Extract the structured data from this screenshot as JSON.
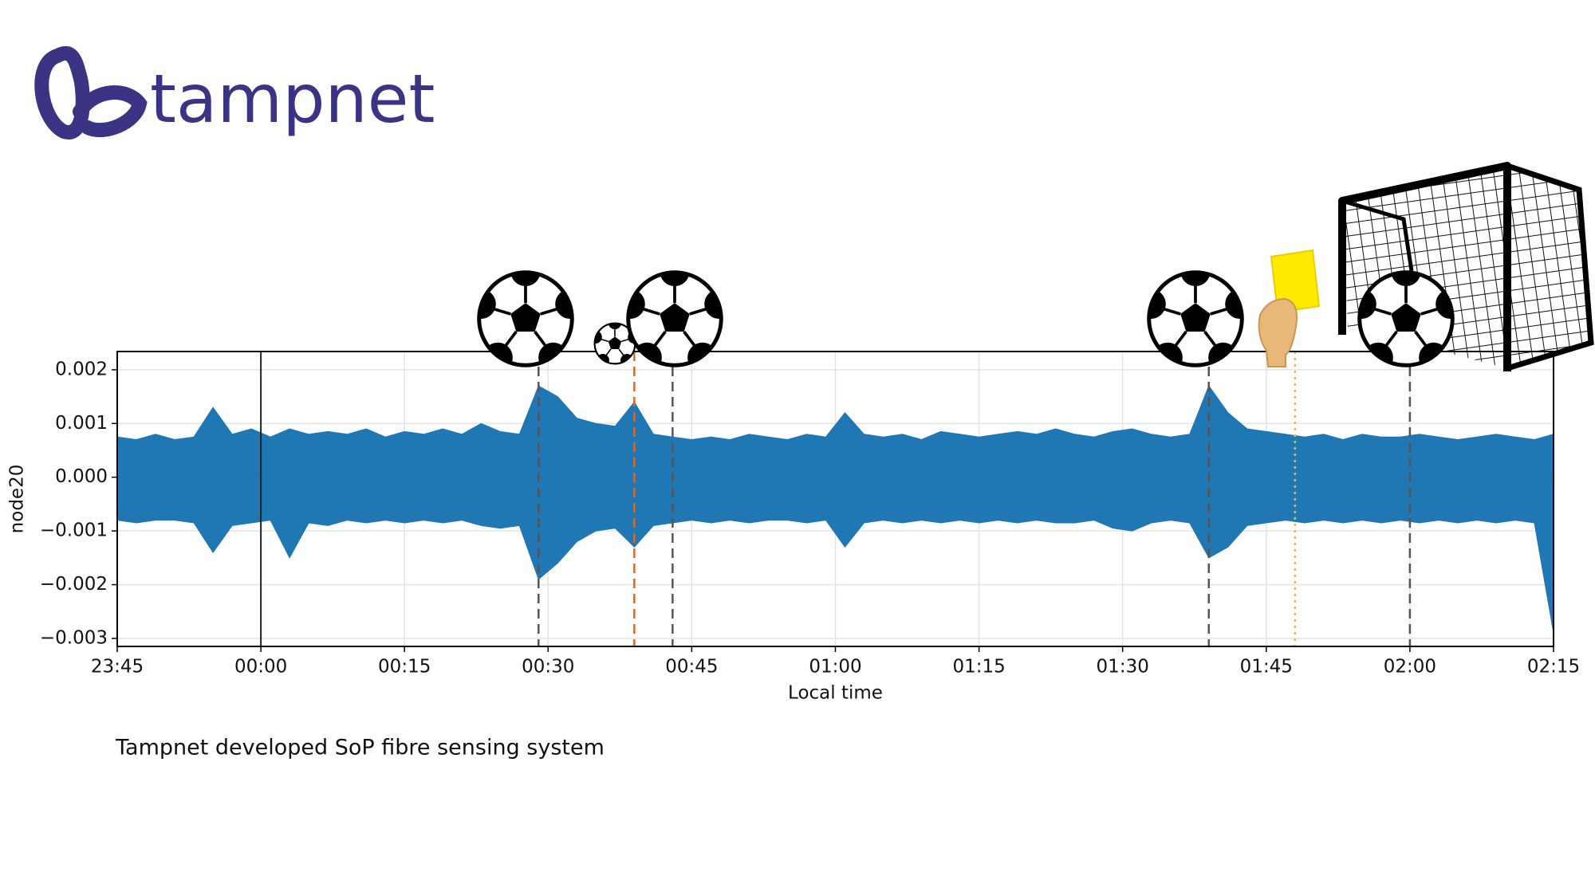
{
  "logo": {
    "text": "tampnet"
  },
  "caption": "Tampnet developed SoP fibre sensing system",
  "chart_data": {
    "type": "band",
    "y_label": "node20",
    "x_label": "Local time",
    "color": "#1f77b4",
    "grid": true,
    "xlim": [
      "23:45",
      "02:15"
    ],
    "xticks": [
      "23:45",
      "00:00",
      "00:15",
      "00:30",
      "00:45",
      "01:00",
      "01:15",
      "01:30",
      "01:45",
      "02:00",
      "02:15"
    ],
    "ylim": [
      -0.00315,
      0.00234
    ],
    "yticks": [
      {
        "value": 0.002,
        "label": "0.002"
      },
      {
        "value": 0.001,
        "label": "0.001"
      },
      {
        "value": 0,
        "label": "0.000"
      },
      {
        "value": -0.001,
        "label": "−0.001"
      },
      {
        "value": -0.002,
        "label": "−0.002"
      },
      {
        "value": -0.003,
        "label": "−0.003"
      }
    ],
    "x": [
      "23:45",
      "23:47",
      "23:49",
      "23:51",
      "23:53",
      "23:55",
      "23:57",
      "23:59",
      "00:01",
      "00:03",
      "00:05",
      "00:07",
      "00:09",
      "00:11",
      "00:13",
      "00:15",
      "00:17",
      "00:19",
      "00:21",
      "00:23",
      "00:25",
      "00:27",
      "00:29",
      "00:31",
      "00:33",
      "00:35",
      "00:37",
      "00:39",
      "00:41",
      "00:43",
      "00:45",
      "00:47",
      "00:49",
      "00:51",
      "00:53",
      "00:55",
      "00:57",
      "00:59",
      "01:01",
      "01:03",
      "01:05",
      "01:07",
      "01:09",
      "01:11",
      "01:13",
      "01:15",
      "01:17",
      "01:19",
      "01:21",
      "01:23",
      "01:25",
      "01:27",
      "01:29",
      "01:31",
      "01:33",
      "01:35",
      "01:37",
      "01:39",
      "01:41",
      "01:43",
      "01:45",
      "01:47",
      "01:49",
      "01:51",
      "01:53",
      "01:55",
      "01:57",
      "01:59",
      "02:01",
      "02:03",
      "02:05",
      "02:07",
      "02:09",
      "02:11",
      "02:13",
      "02:15"
    ],
    "high": [
      0.00075,
      0.0007,
      0.0008,
      0.0007,
      0.00075,
      0.0013,
      0.0008,
      0.0009,
      0.00075,
      0.0009,
      0.0008,
      0.00085,
      0.0008,
      0.0009,
      0.00075,
      0.00085,
      0.0008,
      0.0009,
      0.0008,
      0.001,
      0.00085,
      0.0008,
      0.0017,
      0.0015,
      0.0011,
      0.001,
      0.00095,
      0.0014,
      0.0008,
      0.00075,
      0.0007,
      0.00075,
      0.0007,
      0.0008,
      0.00075,
      0.0007,
      0.0008,
      0.00075,
      0.0012,
      0.0008,
      0.00075,
      0.0008,
      0.0007,
      0.00085,
      0.0008,
      0.00075,
      0.0008,
      0.00085,
      0.0008,
      0.0009,
      0.0008,
      0.00075,
      0.00085,
      0.0009,
      0.0008,
      0.00075,
      0.0008,
      0.0017,
      0.0012,
      0.0009,
      0.00085,
      0.0008,
      0.00075,
      0.0008,
      0.0007,
      0.0008,
      0.00075,
      0.00075,
      0.0008,
      0.00075,
      0.0007,
      0.00075,
      0.0008,
      0.00075,
      0.0007,
      0.0008
    ],
    "low": [
      -0.0008,
      -0.00085,
      -0.0008,
      -0.0008,
      -0.00085,
      -0.0014,
      -0.0009,
      -0.00085,
      -0.0008,
      -0.0015,
      -0.00085,
      -0.0009,
      -0.0008,
      -0.00085,
      -0.0008,
      -0.00085,
      -0.0008,
      -0.00085,
      -0.0008,
      -0.0009,
      -0.00095,
      -0.0009,
      -0.0019,
      -0.0016,
      -0.0012,
      -0.001,
      -0.00095,
      -0.0013,
      -0.0009,
      -0.00085,
      -0.0008,
      -0.00085,
      -0.0008,
      -0.00085,
      -0.0008,
      -0.0008,
      -0.00085,
      -0.0008,
      -0.0013,
      -0.00085,
      -0.0008,
      -0.00085,
      -0.0008,
      -0.00085,
      -0.0008,
      -0.00085,
      -0.0008,
      -0.00085,
      -0.0008,
      -0.00085,
      -0.00085,
      -0.0008,
      -0.00095,
      -0.001,
      -0.00085,
      -0.0008,
      -0.00085,
      -0.0015,
      -0.0013,
      -0.0009,
      -0.00085,
      -0.0008,
      -0.00085,
      -0.0008,
      -0.00085,
      -0.0008,
      -0.00085,
      -0.0008,
      -0.00085,
      -0.0008,
      -0.00085,
      -0.0008,
      -0.00085,
      -0.0008,
      -0.00085,
      -0.0029
    ],
    "events": [
      {
        "x": "00:00",
        "color": "#222222",
        "style": "solid"
      },
      {
        "x": "00:29",
        "color": "#555555",
        "style": "dashed"
      },
      {
        "x": "00:39",
        "color": "#d46a2b",
        "style": "dashed"
      },
      {
        "x": "00:43",
        "color": "#555555",
        "style": "dashed"
      },
      {
        "x": "01:39",
        "color": "#555555",
        "style": "dashed"
      },
      {
        "x": "01:48",
        "color": "#f5b731",
        "style": "dotted"
      },
      {
        "x": "02:00",
        "color": "#555555",
        "style": "dashed"
      }
    ]
  }
}
